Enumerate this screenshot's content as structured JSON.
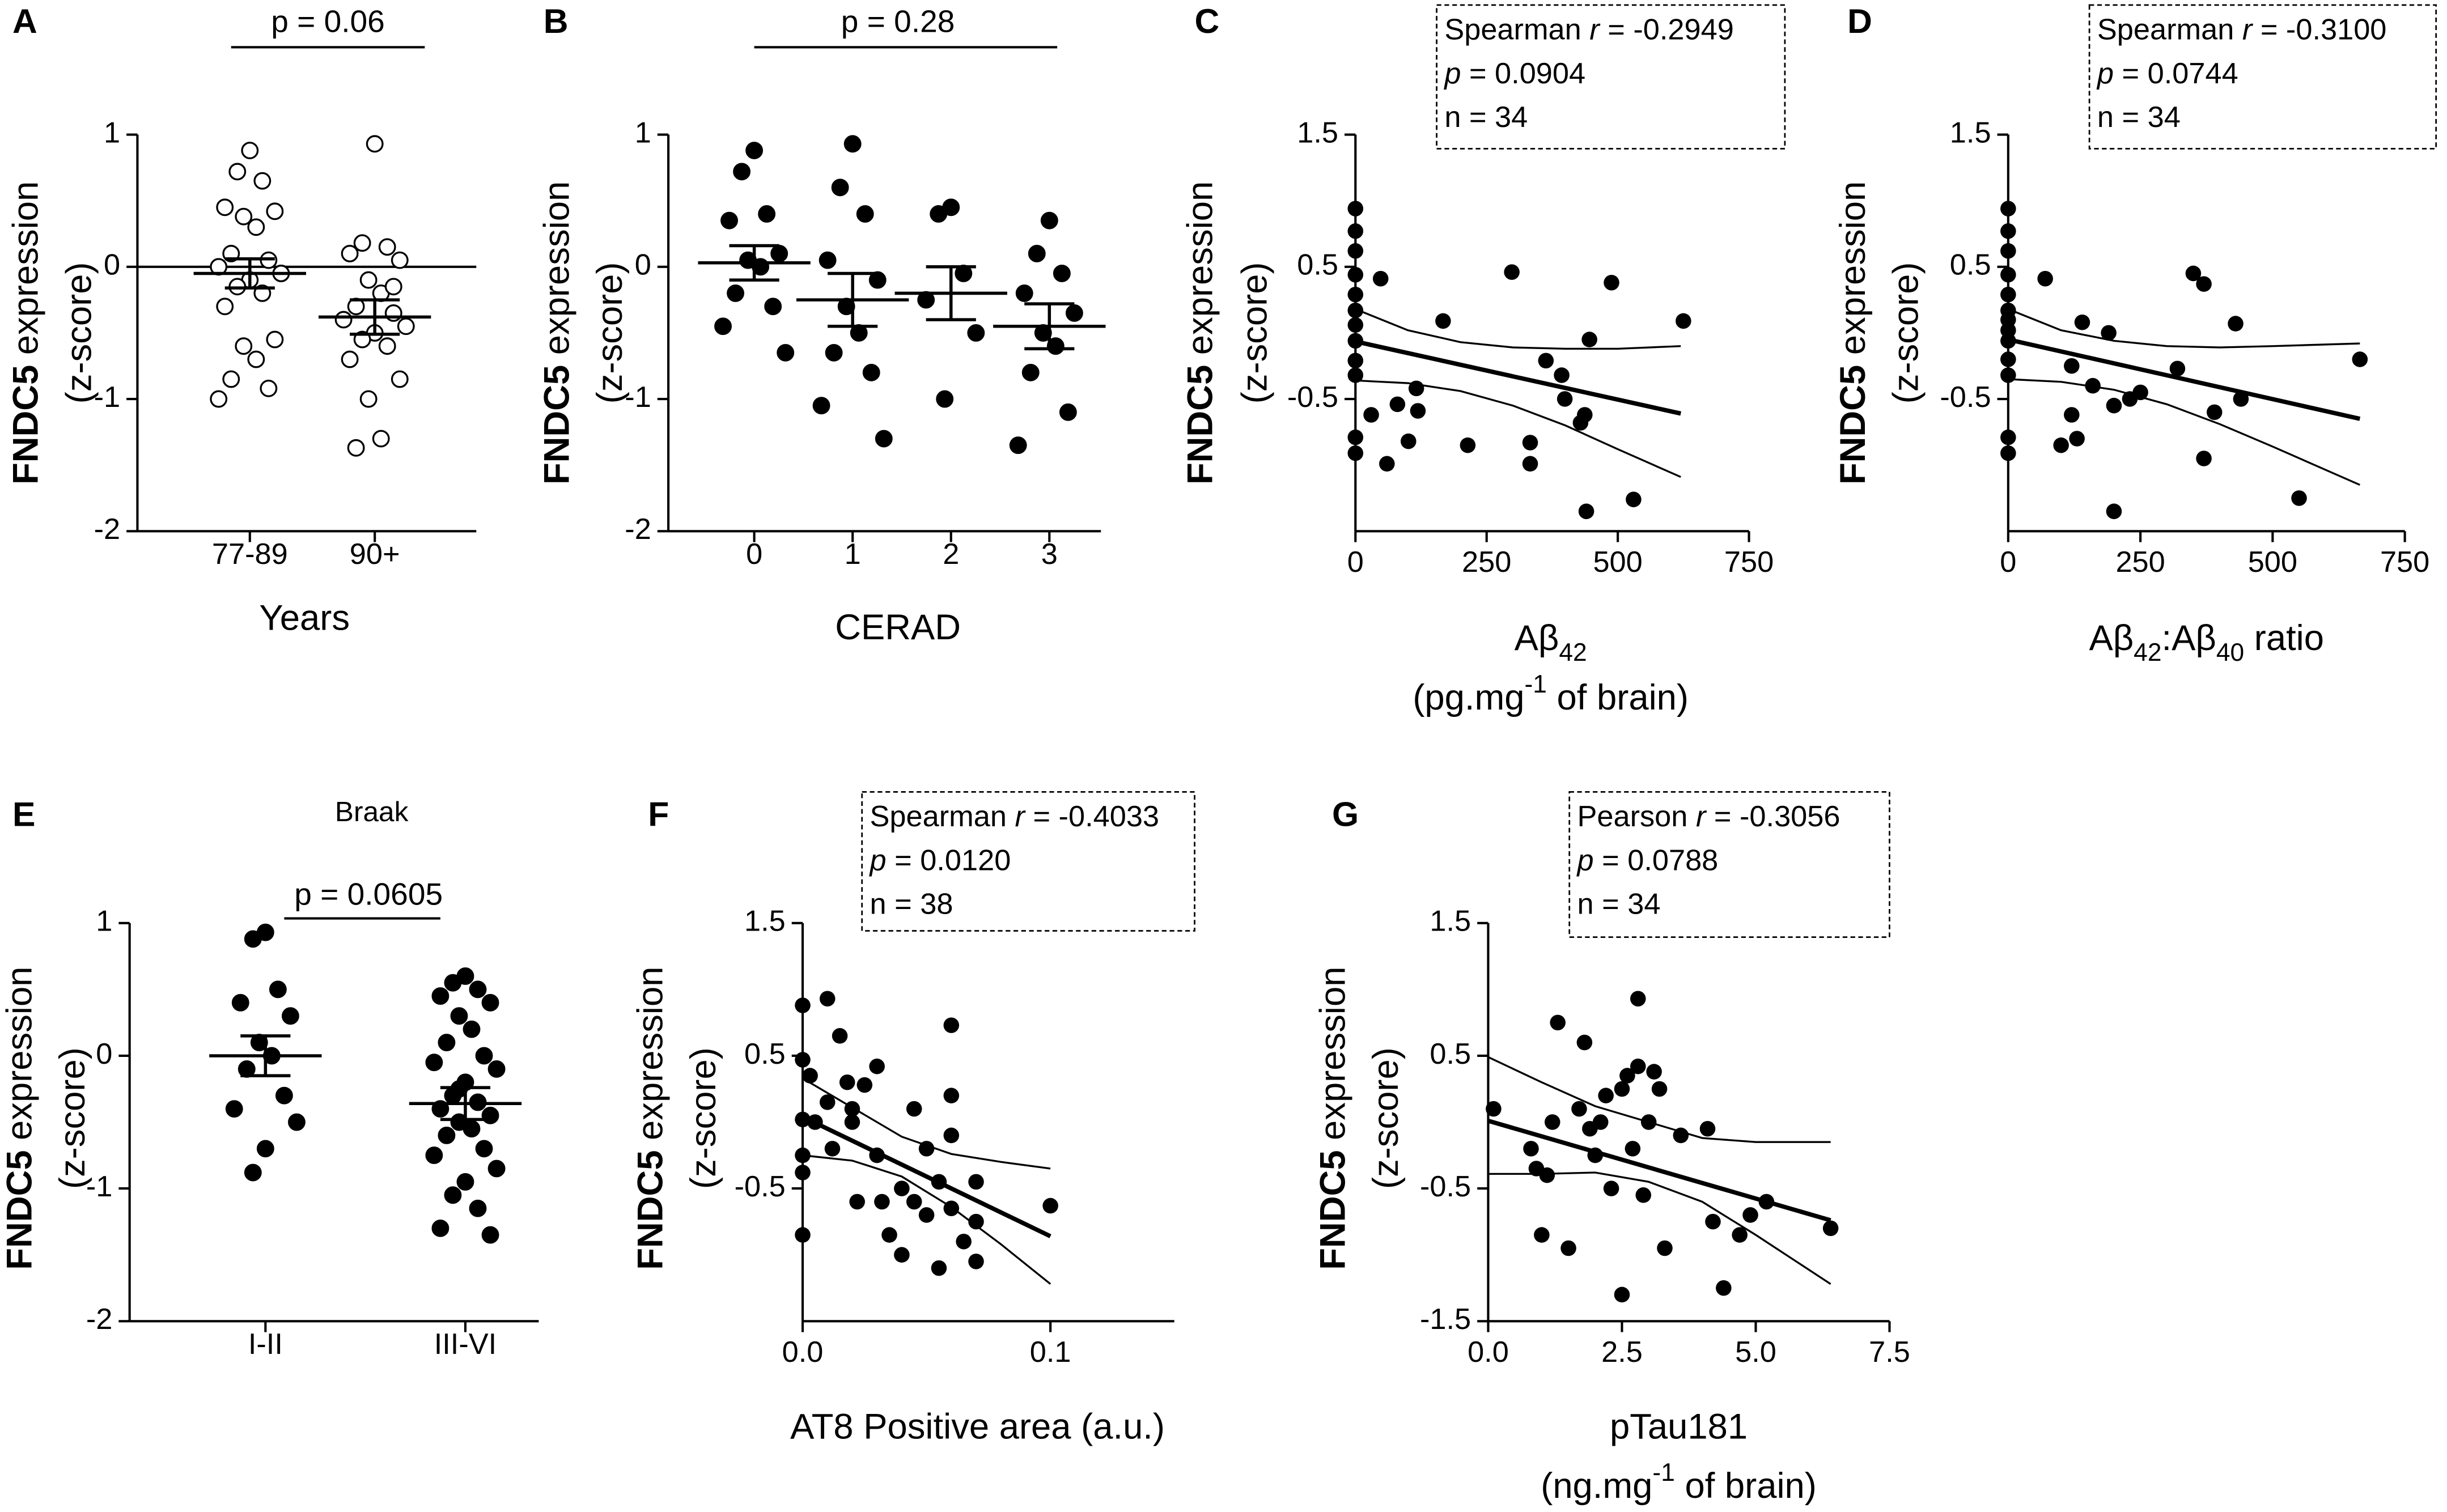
{
  "chart_data": [
    {
      "type": "dot",
      "letter": "A",
      "annotation": "p = 0.06",
      "categories": [
        "77-89",
        "90+"
      ],
      "marker": "open",
      "zero_line": true,
      "groups": [
        [
          0.88,
          0.72,
          0.65,
          0.45,
          0.42,
          0.38,
          0.3,
          0.1,
          0.05,
          0.0,
          -0.05,
          -0.1,
          -0.15,
          -0.2,
          -0.3,
          -0.55,
          -0.6,
          -0.7,
          -0.85,
          -0.92,
          -1.0,
          -0.05
        ],
        [
          0.93,
          0.18,
          0.15,
          0.1,
          0.05,
          -0.1,
          -0.2,
          -0.3,
          -0.35,
          -0.4,
          -0.45,
          -0.5,
          -0.55,
          -0.6,
          -0.7,
          -0.85,
          -1.0,
          -1.3,
          -1.37,
          -0.15
        ]
      ],
      "means": [
        -0.05,
        -0.38
      ],
      "sems": [
        0.11,
        0.13
      ],
      "ylim": [
        -2,
        1
      ],
      "yticks": [
        -2,
        -1,
        0,
        1
      ],
      "x_label": [
        [
          {
            "text": "Years"
          }
        ]
      ],
      "y_label": [
        [
          {
            "text": "FNDC5",
            "weight": "bold"
          },
          {
            "text": " expression"
          }
        ],
        [
          {
            "text": "(z-score)"
          }
        ]
      ]
    },
    {
      "type": "dot",
      "letter": "B",
      "annotation": "p = 0.28",
      "categories": [
        "0",
        "1",
        "2",
        "3"
      ],
      "marker": "filled",
      "zero_line": false,
      "groups": [
        [
          0.88,
          0.72,
          0.4,
          0.35,
          0.1,
          0.05,
          0.0,
          -0.2,
          -0.3,
          -0.45,
          -0.65
        ],
        [
          0.93,
          0.6,
          0.4,
          0.05,
          -0.1,
          -0.3,
          -0.5,
          -0.65,
          -0.8,
          -1.05,
          -1.3
        ],
        [
          0.45,
          0.4,
          -0.05,
          -0.25,
          -0.5,
          -1.0
        ],
        [
          0.35,
          0.1,
          -0.05,
          -0.2,
          -0.35,
          -0.5,
          -0.6,
          -0.8,
          -1.1,
          -1.35
        ]
      ],
      "means": [
        0.03,
        -0.25,
        -0.2,
        -0.45
      ],
      "sems": [
        0.13,
        0.2,
        0.2,
        0.17
      ],
      "ylim": [
        -2,
        1
      ],
      "yticks": [
        -2,
        -1,
        0,
        1
      ],
      "x_label": [
        [
          {
            "text": "CERAD"
          }
        ]
      ],
      "y_label": [
        [
          {
            "text": "FNDC5",
            "weight": "bold"
          },
          {
            "text": " expression"
          }
        ],
        [
          {
            "text": "(z-score)"
          }
        ]
      ]
    },
    {
      "type": "scatter",
      "letter": "C",
      "x": [
        0,
        0,
        0,
        0,
        0,
        0,
        0,
        0,
        0,
        0,
        0,
        0,
        30,
        48,
        60,
        80,
        101,
        116,
        119,
        167,
        214,
        298,
        333,
        363,
        399,
        429,
        437,
        446,
        333,
        488,
        440,
        530,
        625,
        393
      ],
      "y": [
        0.94,
        0.77,
        0.62,
        0.44,
        0.29,
        0.17,
        0.06,
        -0.06,
        -0.21,
        -0.32,
        -0.79,
        -0.91,
        -0.62,
        0.41,
        -0.99,
        -0.54,
        -0.82,
        -0.42,
        -0.59,
        0.09,
        -0.85,
        0.46,
        -0.99,
        -0.21,
        -0.5,
        -0.68,
        -0.62,
        -0.05,
        -0.83,
        0.38,
        -1.35,
        -1.26,
        0.09,
        -0.32
      ],
      "fit": {
        "x": [
          0,
          620
        ],
        "y": [
          -0.065,
          -0.61
        ]
      },
      "ci_upper": {
        "x": [
          0,
          100,
          200,
          300,
          400,
          500,
          620
        ],
        "y": [
          0.18,
          0.02,
          -0.07,
          -0.11,
          -0.12,
          -0.12,
          -0.1
        ]
      },
      "ci_lower": {
        "x": [
          0,
          100,
          200,
          300,
          400,
          500,
          620
        ],
        "y": [
          -0.36,
          -0.38,
          -0.44,
          -0.55,
          -0.7,
          -0.88,
          -1.09
        ]
      },
      "xlim": [
        0,
        750
      ],
      "xticks": [
        0,
        250,
        500,
        750
      ],
      "ylim": [
        -1.5,
        1.5
      ],
      "yticks": [
        -0.5,
        0.5,
        1.5
      ],
      "stats": [
        [
          {
            "text": "Spearman "
          },
          {
            "text": "r",
            "style": "italic"
          },
          {
            "text": " = -0.2949"
          }
        ],
        [
          {
            "text": "p",
            "style": "italic"
          },
          {
            "text": " = 0.0904"
          }
        ],
        [
          {
            "text": "n = 34"
          }
        ]
      ],
      "x_label": [
        [
          {
            "text": "Aβ"
          },
          {
            "text": "42",
            "shift": "sub"
          }
        ],
        [
          {
            "text": "(pg.mg"
          },
          {
            "text": "-1",
            "shift": "super"
          },
          {
            "text": " of brain)"
          }
        ]
      ],
      "y_label": [
        [
          {
            "text": "FNDC5",
            "weight": "bold"
          },
          {
            "text": " expression"
          }
        ],
        [
          {
            "text": "(z-score)"
          }
        ]
      ]
    },
    {
      "type": "scatter",
      "letter": "D",
      "x": [
        0,
        0,
        0,
        0,
        0,
        0,
        0,
        0,
        0,
        0,
        0,
        0,
        0,
        70,
        100,
        120,
        120,
        130,
        140,
        160,
        190,
        200,
        200,
        230,
        320,
        350,
        370,
        370,
        390,
        430,
        440,
        550,
        665,
        250
      ],
      "y": [
        0.94,
        0.77,
        0.62,
        0.44,
        0.29,
        0.17,
        0.1,
        0.02,
        -0.06,
        -0.2,
        -0.32,
        -0.79,
        -0.91,
        0.41,
        -0.85,
        -0.25,
        -0.62,
        -0.8,
        0.08,
        -0.4,
        0.0,
        -0.55,
        -1.35,
        -0.5,
        -0.27,
        0.45,
        0.37,
        -0.95,
        -0.6,
        0.07,
        -0.5,
        -1.25,
        -0.2,
        -0.45
      ],
      "fit": {
        "x": [
          0,
          665
        ],
        "y": [
          -0.05,
          -0.65
        ]
      },
      "ci_upper": {
        "x": [
          0,
          100,
          200,
          300,
          400,
          500,
          665
        ],
        "y": [
          0.18,
          0.02,
          -0.06,
          -0.1,
          -0.11,
          -0.1,
          -0.08
        ]
      },
      "ci_lower": {
        "x": [
          0,
          100,
          200,
          300,
          400,
          500,
          665
        ],
        "y": [
          -0.35,
          -0.37,
          -0.43,
          -0.54,
          -0.69,
          -0.86,
          -1.15
        ]
      },
      "xlim": [
        0,
        750
      ],
      "xticks": [
        0,
        250,
        500,
        750
      ],
      "ylim": [
        -1.5,
        1.5
      ],
      "yticks": [
        -0.5,
        0.5,
        1.5
      ],
      "stats": [
        [
          {
            "text": "Spearman "
          },
          {
            "text": "r",
            "style": "italic"
          },
          {
            "text": " = -0.3100"
          }
        ],
        [
          {
            "text": "p",
            "style": "italic"
          },
          {
            "text": " = 0.0744"
          }
        ],
        [
          {
            "text": "n = 34"
          }
        ]
      ],
      "x_label": [
        [
          {
            "text": "Aβ"
          },
          {
            "text": "42",
            "shift": "sub"
          },
          {
            "text": ":Aβ"
          },
          {
            "text": "40",
            "shift": "sub"
          },
          {
            "text": " ratio"
          }
        ]
      ],
      "y_label": [
        [
          {
            "text": "FNDC5",
            "weight": "bold"
          },
          {
            "text": " expression"
          }
        ],
        [
          {
            "text": "(z-score)"
          }
        ]
      ]
    },
    {
      "type": "dot",
      "letter": "E",
      "title": "Braak",
      "annotation": "p = 0.0605",
      "categories": [
        "I-II",
        "III-VI"
      ],
      "marker": "filled",
      "zero_line": false,
      "groups": [
        [
          0.93,
          0.88,
          0.5,
          0.4,
          0.3,
          0.1,
          0.0,
          -0.1,
          -0.3,
          -0.4,
          -0.5,
          -0.7,
          -0.88
        ],
        [
          0.6,
          0.55,
          0.5,
          0.45,
          0.4,
          0.3,
          0.2,
          0.1,
          0.0,
          -0.05,
          -0.1,
          -0.2,
          -0.3,
          -0.35,
          -0.4,
          -0.45,
          -0.5,
          -0.55,
          -0.6,
          -0.7,
          -0.75,
          -0.85,
          -0.95,
          -1.05,
          -1.15,
          -1.3,
          -1.35,
          -0.25
        ]
      ],
      "means": [
        0.0,
        -0.36
      ],
      "sems": [
        0.15,
        0.12
      ],
      "ylim": [
        -2,
        1
      ],
      "yticks": [
        -2,
        -1,
        0,
        1
      ],
      "y_label": [
        [
          {
            "text": "FNDC5",
            "weight": "bold"
          },
          {
            "text": " expression"
          }
        ],
        [
          {
            "text": "(z-score)"
          }
        ]
      ]
    },
    {
      "type": "scatter",
      "letter": "F",
      "x": [
        0,
        0,
        0,
        0,
        0,
        0,
        0.003,
        0.005,
        0.01,
        0.01,
        0.012,
        0.015,
        0.018,
        0.02,
        0.02,
        0.022,
        0.025,
        0.03,
        0.03,
        0.032,
        0.035,
        0.04,
        0.04,
        0.045,
        0.05,
        0.05,
        0.055,
        0.055,
        0.06,
        0.06,
        0.06,
        0.06,
        0.065,
        0.07,
        0.07,
        0.07,
        0.1,
        0.045
      ],
      "y": [
        0.88,
        0.47,
        0.02,
        -0.25,
        -0.38,
        -0.85,
        0.35,
        0.0,
        0.93,
        0.15,
        -0.2,
        0.65,
        0.3,
        0.1,
        0.0,
        -0.6,
        0.28,
        0.42,
        -0.25,
        -0.6,
        -0.85,
        -0.5,
        -1.0,
        -0.6,
        -0.7,
        -0.2,
        -1.1,
        -0.45,
        -0.65,
        0.2,
        0.73,
        -0.1,
        -0.9,
        -0.75,
        -1.05,
        -0.45,
        -0.63,
        0.1
      ],
      "fit": {
        "x": [
          0,
          0.1
        ],
        "y": [
          0.04,
          -0.86
        ]
      },
      "ci_upper": {
        "x": [
          0,
          0.02,
          0.04,
          0.06,
          0.08,
          0.1
        ],
        "y": [
          0.33,
          0.11,
          -0.11,
          -0.24,
          -0.3,
          -0.35
        ]
      },
      "ci_lower": {
        "x": [
          0,
          0.02,
          0.04,
          0.06,
          0.08,
          0.1
        ],
        "y": [
          -0.25,
          -0.29,
          -0.41,
          -0.64,
          -0.92,
          -1.22
        ]
      },
      "xlim": [
        0,
        0.15
      ],
      "xticks": [
        {
          "value": 0,
          "label": "0.0"
        },
        0.1
      ],
      "ylim": [
        -1.5,
        1.5
      ],
      "yticks": [
        -0.5,
        0.5,
        1.5
      ],
      "stats": [
        [
          {
            "text": "Spearman "
          },
          {
            "text": "r",
            "style": "italic"
          },
          {
            "text": " = -0.4033"
          }
        ],
        [
          {
            "text": "p",
            "style": "italic"
          },
          {
            "text": " = 0.0120"
          }
        ],
        [
          {
            "text": "n = 38"
          }
        ]
      ],
      "x_label": [
        [
          {
            "text": "AT8 Positive area (a.u.)"
          }
        ]
      ],
      "y_label": [
        [
          {
            "text": "FNDC5",
            "weight": "bold"
          },
          {
            "text": " expression"
          }
        ],
        [
          {
            "text": "(z-score)"
          }
        ]
      ]
    },
    {
      "type": "scatter",
      "letter": "G",
      "x": [
        0.1,
        0.8,
        0.9,
        1.0,
        1.1,
        1.2,
        1.3,
        1.5,
        1.7,
        1.8,
        1.9,
        2.0,
        2.1,
        2.2,
        2.3,
        2.5,
        2.5,
        2.6,
        2.7,
        2.8,
        2.8,
        2.9,
        3.0,
        3.1,
        3.2,
        3.3,
        3.6,
        4.1,
        4.2,
        4.4,
        4.7,
        4.9,
        5.2,
        6.4
      ],
      "y": [
        0.1,
        -0.2,
        -0.35,
        -0.85,
        -0.4,
        0.0,
        0.75,
        -0.95,
        0.1,
        0.6,
        -0.05,
        -0.25,
        0.0,
        0.2,
        -0.5,
        -1.3,
        0.25,
        0.35,
        -0.2,
        0.42,
        0.93,
        -0.55,
        0.0,
        0.38,
        0.25,
        -0.95,
        -0.1,
        -0.05,
        -0.75,
        -1.25,
        -0.85,
        -0.7,
        -0.6,
        -0.8
      ],
      "fit": {
        "x": [
          0,
          6.4
        ],
        "y": [
          0.01,
          -0.74
        ]
      },
      "ci_upper": {
        "x": [
          0,
          1,
          2,
          3,
          4,
          5,
          6.4
        ],
        "y": [
          0.49,
          0.3,
          0.12,
          0.0,
          -0.12,
          -0.15,
          -0.15
        ]
      },
      "ci_lower": {
        "x": [
          0,
          1,
          2,
          3,
          4,
          5,
          6.4
        ],
        "y": [
          -0.39,
          -0.39,
          -0.38,
          -0.45,
          -0.6,
          -0.85,
          -1.22
        ]
      },
      "xlim": [
        0,
        7.5
      ],
      "xticks": [
        {
          "value": 0,
          "label": "0.0"
        },
        2.5,
        {
          "value": 5,
          "label": "5.0"
        },
        7.5
      ],
      "ylim": [
        -1.5,
        1.5
      ],
      "yticks": [
        -1.5,
        -0.5,
        0.5,
        1.5
      ],
      "stats": [
        [
          {
            "text": "Pearson "
          },
          {
            "text": "r",
            "style": "italic"
          },
          {
            "text": " = -0.3056"
          }
        ],
        [
          {
            "text": "p",
            "style": "italic"
          },
          {
            "text": " = 0.0788"
          }
        ],
        [
          {
            "text": "n = 34"
          }
        ]
      ],
      "x_label": [
        [
          {
            "text": "pTau181"
          }
        ],
        [
          {
            "text": "(ng.mg"
          },
          {
            "text": "-1",
            "shift": "super"
          },
          {
            "text": " of brain)"
          }
        ]
      ],
      "y_label": [
        [
          {
            "text": "FNDC5",
            "weight": "bold"
          },
          {
            "text": " expression"
          }
        ],
        [
          {
            "text": "(z-score)"
          }
        ]
      ]
    }
  ]
}
